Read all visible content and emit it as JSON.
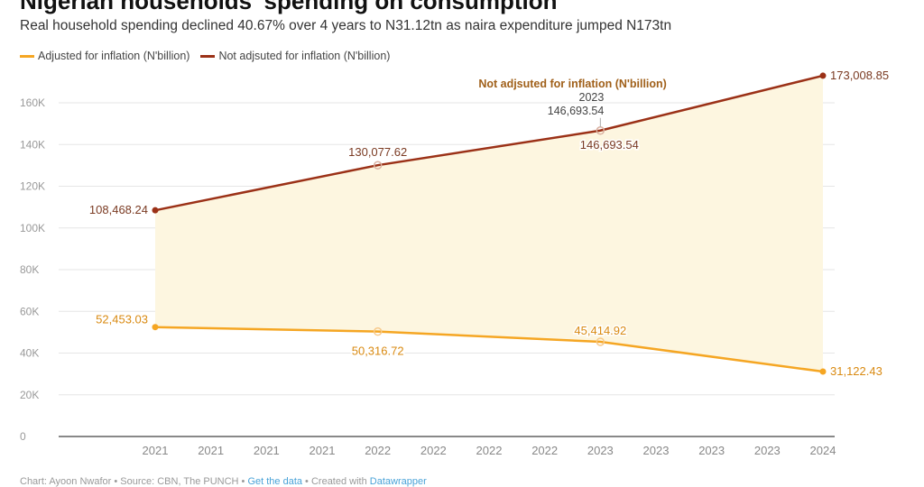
{
  "header": {
    "title": "Nigerian households' spending on consumption",
    "subtitle": "Real household spending declined 40.67% over 4 years to N31.12tn as naira expenditure jumped N173tn"
  },
  "footer": {
    "text1": "Chart: Ayoon Nwafor • Source: CBN, The PUNCH • ",
    "link1": "Get the data",
    "text2": " • Created with ",
    "link2": "Datawrapper"
  },
  "colors": {
    "adjusted": "#f5a623",
    "not_adjusted": "#9b3117",
    "area": "#fdf6e0",
    "grid": "#e6e6e6"
  },
  "chart_data": {
    "type": "line",
    "title": "Nigerian households' spending on consumption",
    "subtitle": "Real household spending declined 40.67% over 4 years to N31.12tn as naira expenditure jumped N173tn",
    "x_tick_labels": [
      "2021",
      "2021",
      "2021",
      "2021",
      "2022",
      "2022",
      "2022",
      "2022",
      "2023",
      "2023",
      "2023",
      "2023",
      "2024"
    ],
    "x": [
      2021,
      2022,
      2023,
      2024
    ],
    "y_ticks": [
      0,
      20000,
      40000,
      60000,
      80000,
      100000,
      120000,
      140000,
      160000
    ],
    "y_tick_labels": [
      "0",
      "20K",
      "40K",
      "60K",
      "80K",
      "100K",
      "120K",
      "140K",
      "160K"
    ],
    "ylim": [
      0,
      160000
    ],
    "grid": true,
    "legend": "top-left",
    "area_between_series": true,
    "series": [
      {
        "name": "Adjusted for inflation (N'billion)",
        "values": [
          52453.03,
          50316.72,
          45414.92,
          31122.43
        ],
        "labels": [
          "52,453.03",
          "50,316.72",
          "45,414.92",
          "31,122.43"
        ]
      },
      {
        "name": "Not adjsuted for inflation (N'billion)",
        "values": [
          108468.24,
          130077.62,
          146693.54,
          173008.85
        ],
        "labels": [
          "108,468.24",
          "130,077.62",
          "146,693.54",
          "173,008.85"
        ]
      }
    ],
    "tooltip": {
      "series": "Not adjsuted for inflation (N'billion)",
      "x_label": "2023",
      "value_label": "146,693.54"
    }
  }
}
